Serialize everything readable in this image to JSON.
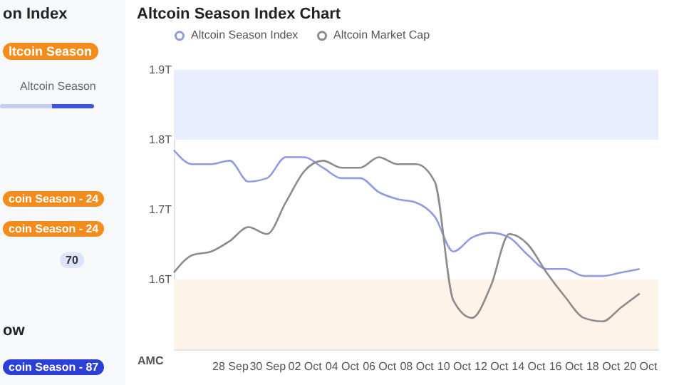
{
  "chart_data": [
    {
      "type": "other",
      "annotations": [
        "on Index",
        "ltcoin Season",
        "Altcoin Season",
        "coin Season - 24",
        "coin Season - 24",
        "70",
        "ow",
        "coin Season - 87"
      ]
    },
    {
      "type": "line",
      "title": "Altcoin Season Index Chart",
      "ylabel": "AMC",
      "x": [
        "--09-25",
        "--09-26",
        "--09-27",
        "--09-28",
        "--09-29",
        "--09-30",
        "--10-01",
        "--10-02",
        "--10-03",
        "--10-04",
        "--10-05",
        "--10-06",
        "--10-07",
        "--10-08",
        "--10-09",
        "--10-10",
        "--10-11",
        "--10-12",
        "--10-13",
        "--10-14",
        "--10-15",
        "--10-16",
        "--10-17",
        "--10-18",
        "--10-19",
        "--10-20"
      ],
      "series": [
        {
          "name": "Altcoin Season Index",
          "color": "#8f9be3",
          "values": [
            1.785,
            1.765,
            1.765,
            1.77,
            1.74,
            1.745,
            1.775,
            1.775,
            1.76,
            1.745,
            1.745,
            1.725,
            1.715,
            1.71,
            1.69,
            1.64,
            1.66,
            1.667,
            1.66,
            1.635,
            1.615,
            1.615,
            1.605,
            1.605,
            1.61,
            1.615
          ]
        },
        {
          "name": "Altcoin Market Cap",
          "color": "#8c8c8c",
          "values": [
            1.61,
            1.635,
            1.64,
            1.655,
            1.675,
            1.665,
            1.71,
            1.755,
            1.77,
            1.76,
            1.76,
            1.775,
            1.765,
            1.765,
            1.74,
            1.57,
            1.545,
            1.59,
            1.665,
            1.65,
            1.61,
            1.575,
            1.545,
            1.54,
            1.56,
            1.58
          ]
        }
      ],
      "xlim": [
        "--09-25",
        "--10-21"
      ],
      "xticks": [
        {
          "value": "--09-28",
          "label": "28 Sep"
        },
        {
          "value": "--09-30",
          "label": "30 Sep"
        },
        {
          "value": "--10-02",
          "label": "02 Oct"
        },
        {
          "value": "--10-04",
          "label": "04 Oct"
        },
        {
          "value": "--10-06",
          "label": "06 Oct"
        },
        {
          "value": "--10-08",
          "label": "08 Oct"
        },
        {
          "value": "--10-10",
          "label": "10 Oct"
        },
        {
          "value": "--10-12",
          "label": "12 Oct"
        },
        {
          "value": "--10-14",
          "label": "14 Oct"
        },
        {
          "value": "--10-16",
          "label": "16 Oct"
        },
        {
          "value": "--10-18",
          "label": "18 Oct"
        },
        {
          "value": "--10-20",
          "label": "20 Oct"
        }
      ],
      "ylim": [
        1.5,
        1.9
      ],
      "yticks": [
        {
          "value": 1.6,
          "label": "1.6T"
        },
        {
          "value": 1.7,
          "label": "1.7T"
        },
        {
          "value": 1.8,
          "label": "1.8T"
        },
        {
          "value": 1.9,
          "label": "1.9T"
        }
      ],
      "bands": [
        {
          "axis": "y",
          "from": 1.8,
          "to": 1.9,
          "color": "#e8eefe"
        },
        {
          "axis": "y",
          "from": 1.5,
          "to": 1.6,
          "color": "#fdf3e8"
        }
      ],
      "legend": "top left",
      "grid": false
    }
  ]
}
